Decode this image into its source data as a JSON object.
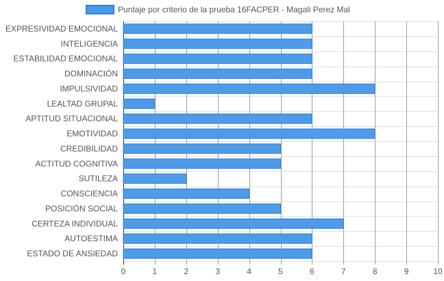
{
  "chart_data": {
    "type": "bar",
    "orientation": "horizontal",
    "title": "",
    "xlabel": "",
    "ylabel": "",
    "xlim": [
      0,
      10
    ],
    "xticks": [
      0,
      1,
      2,
      3,
      4,
      5,
      6,
      7,
      8,
      9,
      10
    ],
    "grid": true,
    "legend_position": "top",
    "series": [
      {
        "name": "Puntaje por criterio de la prueba 16FACPER - Magali Perez Mal",
        "color": "#4d9be9",
        "border_color": "#2f80d8",
        "values": [
          6,
          6,
          6,
          6,
          8,
          1,
          6,
          8,
          5,
          5,
          2,
          4,
          5,
          7,
          6,
          6
        ]
      }
    ],
    "categories": [
      "EXPRESIVIDAD EMOCIONAL",
      "INTELIGENCIA",
      "ESTABILIDAD EMOCIONAL",
      "DOMINACIÓN",
      "IMPULSIVIDAD",
      "LEALTAD GRUPAL",
      "APTITUD SITUACIONAL",
      "EMOTIVIDAD",
      "CREDIBILIDAD",
      "ACTITUD COGNITIVA",
      "SUTILEZA",
      "CONSCIENCIA",
      "POSICIÓN SOCIAL",
      "CERTEZA INDIVIDUAL",
      "AUTOESTIMA",
      "ESTADO DE ANSIEDAD"
    ]
  }
}
